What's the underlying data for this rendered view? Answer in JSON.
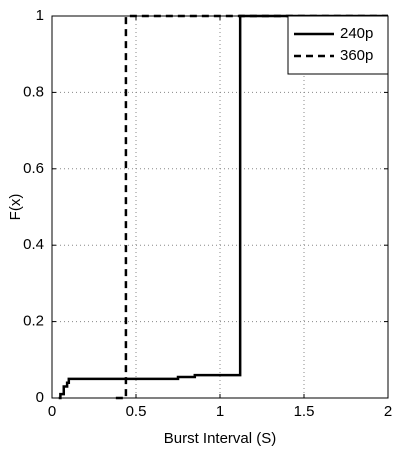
{
  "chart_data": {
    "type": "line",
    "xlabel": "Burst Interval (S)",
    "ylabel": "F(x)",
    "xlim": [
      0,
      2
    ],
    "ylim": [
      0,
      1
    ],
    "xticks": [
      0,
      0.5,
      1,
      1.5,
      2
    ],
    "yticks": [
      0,
      0.2,
      0.4,
      0.6,
      0.8,
      1
    ],
    "grid": true,
    "legend": "upper right",
    "series": [
      {
        "name": "240p",
        "color": "#000000",
        "line_style": "solid",
        "x": [
          0.04,
          0.05,
          0.05,
          0.07,
          0.07,
          0.09,
          0.09,
          0.1,
          0.1,
          0.75,
          0.75,
          0.85,
          0.85,
          1.12,
          1.12,
          2
        ],
        "values": [
          0,
          0,
          0.01,
          0.01,
          0.03,
          0.03,
          0.04,
          0.04,
          0.05,
          0.05,
          0.055,
          0.055,
          0.06,
          0.06,
          1,
          1
        ]
      },
      {
        "name": "360p",
        "color": "#000000",
        "line_style": "dashed",
        "x": [
          0.38,
          0.44,
          0.44,
          2
        ],
        "values": [
          0,
          0,
          1,
          1
        ]
      }
    ]
  }
}
